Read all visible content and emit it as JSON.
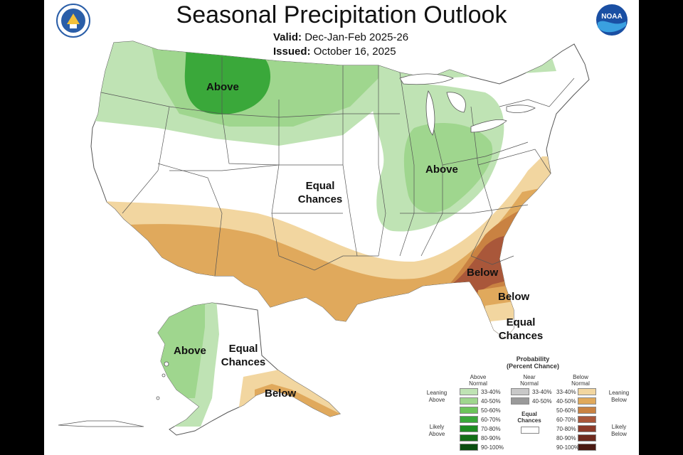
{
  "title": "Seasonal Precipitation Outlook",
  "valid_label": "Valid:",
  "valid_value": "Dec-Jan-Feb 2025-26",
  "issued_label": "Issued:",
  "issued_value": "October 16, 2025",
  "noaa_logo_text": "NOAA",
  "regions": {
    "above_north": "Above",
    "above_ohio": "Above",
    "equal_central_1": "Equal",
    "equal_central_2": "Chances",
    "below_se": "Below",
    "below_fl": "Below",
    "equal_fl_1": "Equal",
    "equal_fl_2": "Chances",
    "above_ak": "Above",
    "equal_ak_1": "Equal",
    "equal_ak_2": "Chances",
    "below_ak": "Below"
  },
  "legend": {
    "title_1": "Probability",
    "title_2": "(Percent Chance)",
    "above_head_1": "Above",
    "above_head_2": "Normal",
    "near_head_1": "Near",
    "near_head_2": "Normal",
    "below_head_1": "Below",
    "below_head_2": "Normal",
    "leaning_above_1": "Leaning",
    "leaning_above_2": "Above",
    "likely_above_1": "Likely",
    "likely_above_2": "Above",
    "leaning_below_1": "Leaning",
    "leaning_below_2": "Below",
    "likely_below_1": "Likely",
    "likely_below_2": "Below",
    "equal_chances_1": "Equal",
    "equal_chances_2": "Chances",
    "above_bins": [
      "33-40%",
      "40-50%",
      "50-60%",
      "60-70%",
      "70-80%",
      "80-90%",
      "90-100%"
    ],
    "above_colors": [
      "#bfe3b4",
      "#9fd68e",
      "#6cc45a",
      "#3aa83a",
      "#1e8c22",
      "#136e17",
      "#0a4d10"
    ],
    "near_bins": [
      "33-40%",
      "40-50%"
    ],
    "near_colors": [
      "#c8c8c8",
      "#9a9a9a"
    ],
    "below_bins": [
      "33-40%",
      "40-50%",
      "50-60%",
      "60-70%",
      "70-80%",
      "80-90%",
      "90-100%"
    ],
    "below_colors": [
      "#f2d6a0",
      "#e0a95c",
      "#c98242",
      "#a9573a",
      "#8c3b2a",
      "#6e2a1e",
      "#4a1a12"
    ]
  },
  "colors": {
    "above_light": "#bfe3b4",
    "above_mid": "#9fd68e",
    "above_dark": "#6cc45a",
    "above_darker": "#3aa83a",
    "below_light": "#f2d6a0",
    "below_mid": "#e0a95c",
    "below_dark": "#c98242",
    "below_darker": "#a9573a"
  }
}
